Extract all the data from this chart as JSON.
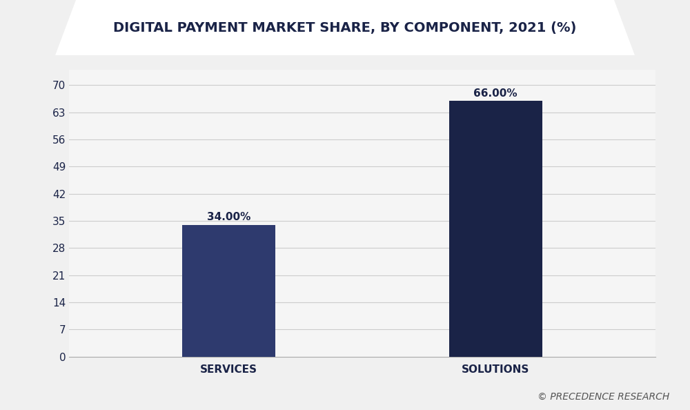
{
  "title": "DIGITAL PAYMENT MARKET SHARE, BY COMPONENT, 2021 (%)",
  "categories": [
    "SERVICES",
    "SOLUTIONS"
  ],
  "values": [
    34.0,
    66.0
  ],
  "labels": [
    "34.00%",
    "66.00%"
  ],
  "bar_colors": [
    "#2e3a6e",
    "#1a2347"
  ],
  "bg_color": "#f0f0f0",
  "plot_bg_color": "#f5f5f5",
  "title_color": "#1a2347",
  "tick_color": "#1a2347",
  "yticks": [
    0,
    7,
    14,
    21,
    28,
    35,
    42,
    49,
    56,
    63,
    70
  ],
  "ylim": [
    0,
    74
  ],
  "grid_color": "#cccccc",
  "watermark": "© PRECEDENCE RESEARCH",
  "title_fontsize": 14,
  "bar_width": 0.35,
  "label_fontsize": 11,
  "tick_fontsize": 11,
  "watermark_fontsize": 10,
  "header_dark_color": "#1a2347",
  "header_light_color": "#ffffff",
  "decoration_color": "#2e3a6e"
}
